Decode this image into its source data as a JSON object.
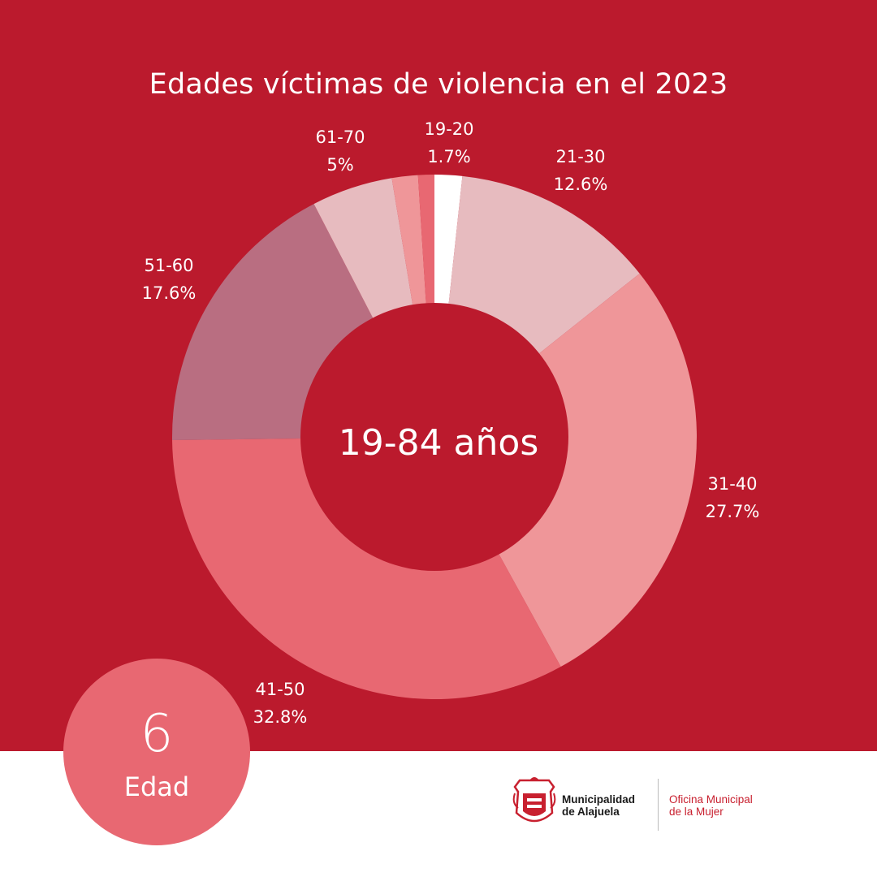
{
  "title": "Edades víctimas de violencia en el 2023",
  "center_text": "19-84 años",
  "badge": {
    "number": "6",
    "label": "Edad"
  },
  "logo": {
    "org_line1": "Municipalidad",
    "org_line2": "de Alajuela",
    "office_line1": "Oficina Municipal",
    "office_line2": "de la Mujer"
  },
  "colors": {
    "background": "#bb1a2d",
    "footer": "#ffffff",
    "badge": "#e86872",
    "text": "#ffffff"
  },
  "chart_data": {
    "type": "pie",
    "style": "donut",
    "title": "Edades víctimas de violencia en el 2023",
    "center_label": "19-84 años",
    "slices": [
      {
        "label": "19-20",
        "pct_label": "1.7%",
        "value": 1.7,
        "color": "#ffffff",
        "show_label": true
      },
      {
        "label": "21-30",
        "pct_label": "12.6%",
        "value": 12.6,
        "color": "#e7bbbf",
        "show_label": true
      },
      {
        "label": "31-40",
        "pct_label": "27.7%",
        "value": 27.7,
        "color": "#ef9699",
        "show_label": true
      },
      {
        "label": "41-50",
        "pct_label": "32.8%",
        "value": 32.8,
        "color": "#e86872",
        "show_label": true
      },
      {
        "label": "51-60",
        "pct_label": "17.6%",
        "value": 17.6,
        "color": "#b96e81",
        "show_label": true
      },
      {
        "label": "61-70",
        "pct_label": "5%",
        "value": 5.0,
        "color": "#e7bbbf",
        "show_label": true
      },
      {
        "label": "",
        "pct_label": "",
        "value": 1.6,
        "color": "#ef9699",
        "show_label": false
      },
      {
        "label": "",
        "pct_label": "",
        "value": 1.0,
        "color": "#e86872",
        "show_label": false
      }
    ]
  }
}
